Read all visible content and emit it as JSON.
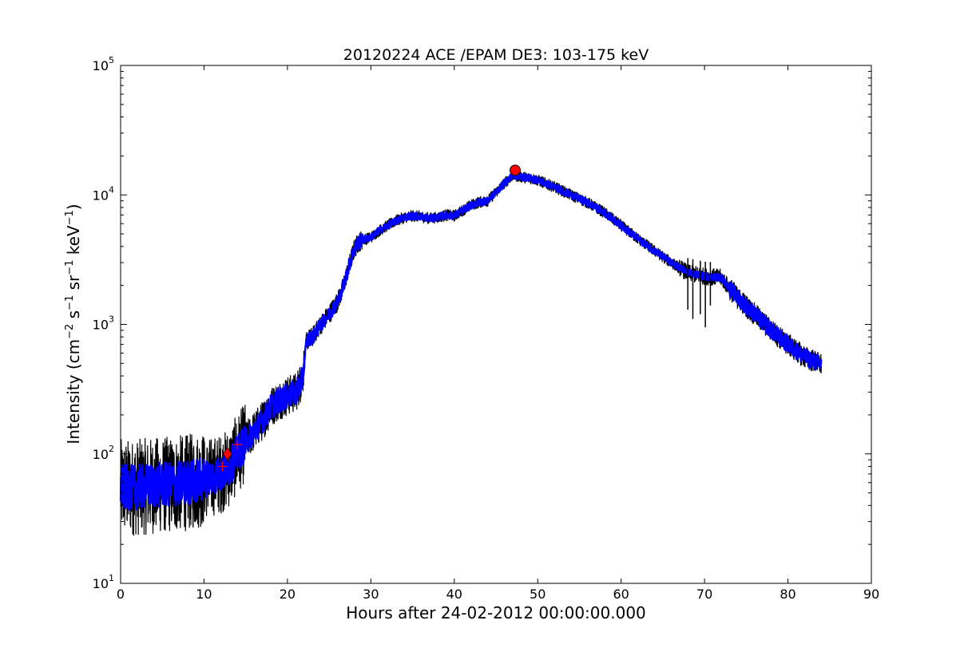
{
  "chart_data": {
    "type": "line",
    "title": "20120224 ACE /EPAM DE3: 103-175 keV",
    "xlabel": "Hours after 24-02-2012 00:00:00.000",
    "ylabel": {
      "prefix": "Intensity (cm",
      "sup1": "−2",
      "mid1": " s",
      "sup2": "−1",
      "mid2": " sr",
      "sup3": "−1",
      "mid3": " keV",
      "sup4": "−1",
      "suffix": ")"
    },
    "xlim": [
      0,
      90
    ],
    "ylim": [
      10,
      100000
    ],
    "yscale": "log",
    "grid": false,
    "x_ticks": [
      "0",
      "10",
      "20",
      "30",
      "40",
      "50",
      "60",
      "70",
      "80",
      "90"
    ],
    "y_ticks": [
      {
        "base": "10",
        "exp": "1"
      },
      {
        "base": "10",
        "exp": "2"
      },
      {
        "base": "10",
        "exp": "3"
      },
      {
        "base": "10",
        "exp": "4"
      },
      {
        "base": "10",
        "exp": "5"
      }
    ],
    "series": [
      {
        "color": "#000000",
        "style": "raw-noisy",
        "x": [
          0,
          2,
          4,
          6,
          8,
          10,
          12,
          13,
          14,
          15,
          16,
          17,
          18,
          19,
          20,
          21,
          21.8,
          22.3,
          23,
          24,
          25,
          26,
          26.5,
          27,
          27.5,
          28,
          28.5,
          29,
          30,
          31,
          32,
          33,
          34,
          35,
          36,
          37,
          38,
          39,
          40,
          41,
          42,
          43,
          44,
          45,
          46,
          47,
          48,
          49,
          50,
          52,
          54,
          56,
          58,
          60,
          62,
          64,
          66,
          68,
          70,
          72,
          73,
          74,
          76,
          78,
          80,
          82,
          84
        ],
        "y": [
          55,
          55,
          57,
          58,
          60,
          64,
          70,
          78,
          100,
          125,
          150,
          180,
          230,
          260,
          280,
          300,
          380,
          750,
          800,
          1000,
          1200,
          1500,
          1800,
          2300,
          3000,
          3800,
          4300,
          4500,
          4700,
          5300,
          5800,
          6300,
          6700,
          6900,
          6800,
          6600,
          6700,
          7000,
          6900,
          7600,
          8300,
          8800,
          9000,
          10500,
          12300,
          14200,
          13800,
          13500,
          13000,
          11500,
          10000,
          8700,
          7300,
          5800,
          4600,
          3700,
          3000,
          2500,
          2350,
          2300,
          1900,
          1600,
          1200,
          900,
          700,
          560,
          490
        ]
      },
      {
        "color": "#0000ff",
        "style": "smoothed-band",
        "x": [
          0,
          2,
          4,
          6,
          8,
          10,
          12,
          13,
          14,
          15,
          16,
          17,
          18,
          19,
          20,
          21,
          21.8,
          22.3,
          23,
          24,
          25,
          26,
          26.5,
          27,
          27.5,
          28,
          28.5,
          29,
          30,
          31,
          32,
          33,
          34,
          35,
          36,
          37,
          38,
          39,
          40,
          41,
          42,
          43,
          44,
          45,
          46,
          47,
          48,
          49,
          50,
          52,
          54,
          56,
          58,
          60,
          62,
          64,
          66,
          68,
          70,
          72,
          73,
          74,
          76,
          78,
          80,
          82,
          84
        ],
        "y": [
          55,
          55,
          57,
          58,
          60,
          64,
          70,
          78,
          100,
          125,
          150,
          180,
          230,
          260,
          280,
          300,
          380,
          750,
          800,
          1000,
          1200,
          1500,
          1800,
          2300,
          3000,
          3800,
          4300,
          4500,
          4700,
          5300,
          5800,
          6300,
          6700,
          6900,
          6800,
          6600,
          6700,
          7000,
          6900,
          7600,
          8300,
          8800,
          9000,
          10500,
          12300,
          14200,
          13800,
          13500,
          13000,
          11500,
          10000,
          8700,
          7300,
          5800,
          4600,
          3700,
          3000,
          2500,
          2350,
          2300,
          1900,
          1600,
          1200,
          900,
          700,
          560,
          490
        ]
      }
    ],
    "markers": [
      {
        "kind": "circle",
        "color": "#ff0000",
        "x": 47.3,
        "y": 15500
      },
      {
        "kind": "diamond",
        "color": "#ff0000",
        "x": 12.8,
        "y": 100
      },
      {
        "kind": "plus",
        "color": "#ff0000",
        "x": 12.2,
        "y": 80
      },
      {
        "kind": "plus",
        "color": "#ff0000",
        "x": 14.0,
        "y": 118
      }
    ],
    "dropouts": [
      {
        "x": 68.0,
        "y": 1300
      },
      {
        "x": 68.6,
        "y": 1100
      },
      {
        "x": 69.5,
        "y": 1200
      },
      {
        "x": 70.1,
        "y": 950
      },
      {
        "x": 70.7,
        "y": 1400
      }
    ]
  }
}
